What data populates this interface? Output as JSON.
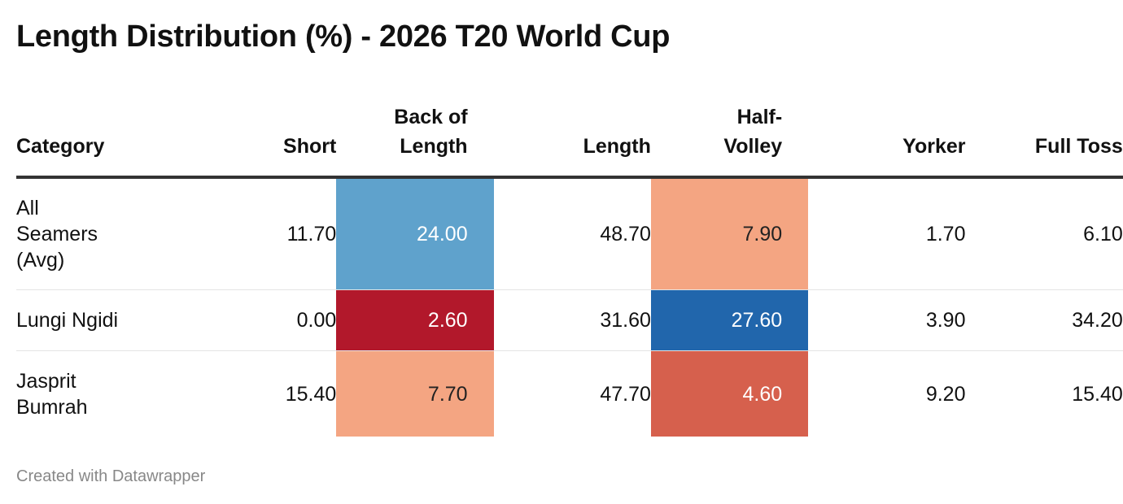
{
  "title": "Length Distribution (%) - 2026 T20 World Cup",
  "credit": "Created with Datawrapper",
  "colors": {
    "dark_red": "#b2182b",
    "red": "#d6604d",
    "light_red": "#f4a582",
    "light_blue": "#5fa2cc",
    "dark_blue": "#2166ac",
    "light_text": "#ffffff",
    "dark_text": "#222222"
  },
  "chart_data": {
    "type": "table",
    "columns": [
      "Category",
      "Short",
      "Back of Length",
      "Length",
      "Half-Volley",
      "Yorker",
      "Full Toss"
    ],
    "header_lines": [
      [
        "Category"
      ],
      [
        "Short"
      ],
      [
        "Back of",
        "Length"
      ],
      [
        "Length"
      ],
      [
        "Half-",
        "Volley"
      ],
      [
        "Yorker"
      ],
      [
        "Full Toss"
      ]
    ],
    "heatmap_columns": [
      "Back of Length",
      "Half-Volley"
    ],
    "rows": [
      {
        "category": [
          "All",
          "Seamers",
          "(Avg)"
        ],
        "values": [
          "11.70",
          "24.00",
          "48.70",
          "7.90",
          "1.70",
          "6.10"
        ],
        "heat": {
          "Back of Length": {
            "bg": "#5fa2cc",
            "fg": "#ffffff"
          },
          "Half-Volley": {
            "bg": "#f4a582",
            "fg": "#222222"
          }
        }
      },
      {
        "category": [
          "Lungi Ngidi"
        ],
        "values": [
          "0.00",
          "2.60",
          "31.60",
          "27.60",
          "3.90",
          "34.20"
        ],
        "heat": {
          "Back of Length": {
            "bg": "#b2182b",
            "fg": "#ffffff"
          },
          "Half-Volley": {
            "bg": "#2166ac",
            "fg": "#ffffff"
          }
        }
      },
      {
        "category": [
          "Jasprit",
          "Bumrah"
        ],
        "values": [
          "15.40",
          "7.70",
          "47.70",
          "4.60",
          "9.20",
          "15.40"
        ],
        "heat": {
          "Back of Length": {
            "bg": "#f4a582",
            "fg": "#222222"
          },
          "Half-Volley": {
            "bg": "#d6604d",
            "fg": "#ffffff"
          }
        }
      }
    ]
  }
}
